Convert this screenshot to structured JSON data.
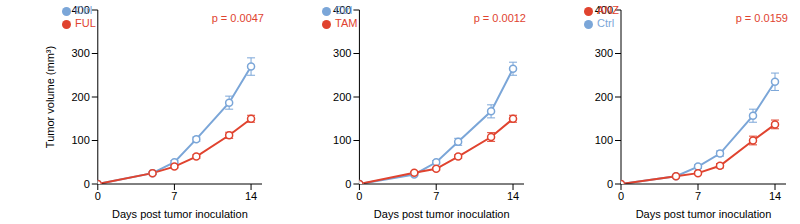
{
  "chart_data": [
    {
      "type": "line",
      "x_label": "Days post tumor inoculation",
      "y_label": "Tumor volume (mm³)",
      "x": [
        0,
        5,
        7,
        9,
        12,
        14
      ],
      "xlim": [
        0,
        15
      ],
      "xticks": [
        0,
        7,
        14
      ],
      "ylim": [
        0,
        400
      ],
      "yticks": [
        0,
        100,
        200,
        300,
        400
      ],
      "legend": "upper left",
      "annotation": "p = 0.0047",
      "series": [
        {
          "name": "Ctrl",
          "color": "#7ba6d8",
          "marker": "circle",
          "values": [
            0,
            25,
            50,
            103,
            187,
            270
          ],
          "errors": [
            0,
            2,
            4,
            5,
            15,
            20
          ]
        },
        {
          "name": "FUL",
          "color": "#e0432f",
          "marker": "circle",
          "values": [
            0,
            25,
            40,
            63,
            112,
            150
          ],
          "errors": [
            0,
            2,
            3,
            4,
            7,
            8
          ]
        }
      ]
    },
    {
      "type": "line",
      "x_label": "Days post tumor inoculation",
      "x": [
        0,
        5,
        7,
        9,
        12,
        14
      ],
      "xlim": [
        0,
        15
      ],
      "xticks": [
        0,
        7,
        14
      ],
      "ylim": [
        0,
        400
      ],
      "yticks": [
        0,
        100,
        200,
        300,
        400
      ],
      "legend": "upper left",
      "annotation": "p = 0.0012",
      "series": [
        {
          "name": "Ctrl",
          "color": "#7ba6d8",
          "marker": "circle",
          "values": [
            0,
            22,
            50,
            97,
            167,
            265
          ],
          "errors": [
            0,
            2,
            4,
            8,
            15,
            15
          ]
        },
        {
          "name": "TAM",
          "color": "#e0432f",
          "marker": "circle",
          "values": [
            0,
            26,
            35,
            63,
            108,
            150
          ],
          "errors": [
            0,
            2,
            3,
            4,
            10,
            8
          ]
        }
      ]
    },
    {
      "type": "line",
      "x_label": "Days post tumor inoculation",
      "x": [
        0,
        5,
        7,
        9,
        12,
        14
      ],
      "xlim": [
        0,
        15
      ],
      "xticks": [
        0,
        7,
        14
      ],
      "ylim": [
        0,
        400
      ],
      "yticks": [
        0,
        100,
        200,
        300,
        400
      ],
      "legend": "upper left",
      "annotation": "p = 0.0159",
      "series": [
        {
          "name": "Ctrl",
          "color": "#7ba6d8",
          "marker": "circle",
          "values": [
            0,
            18,
            40,
            70,
            157,
            235
          ],
          "errors": [
            0,
            2,
            4,
            6,
            15,
            20
          ]
        },
        {
          "name": "ANZ",
          "color": "#e0432f",
          "marker": "circle",
          "values": [
            0,
            18,
            25,
            42,
            100,
            137
          ],
          "errors": [
            0,
            2,
            3,
            5,
            10,
            10
          ]
        }
      ]
    }
  ]
}
